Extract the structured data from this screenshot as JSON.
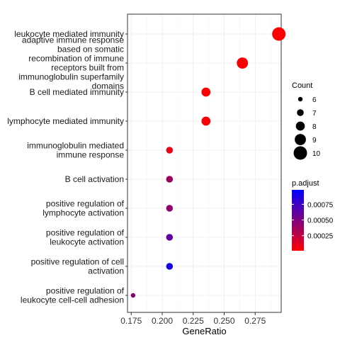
{
  "chart_data": {
    "type": "scatter",
    "xlabel": "GeneRatio",
    "ylabel": "",
    "xlim": [
      0.172,
      0.296
    ],
    "xticks": [
      0.175,
      0.2,
      0.225,
      0.25,
      0.275
    ],
    "xtick_labels": [
      "0.175",
      "0.200",
      "0.225",
      "0.250",
      "0.275"
    ],
    "grid": true,
    "legend_position": "right",
    "categories": [
      "leukocyte mediated immunity",
      "adaptive immune response based on somatic recombination of immune receptors built from immunoglobulin superfamily domains",
      "B cell mediated immunity",
      "lymphocyte mediated immunity",
      "immunoglobulin mediated immune response",
      "B cell activation",
      "positive regulation of lymphocyte activation",
      "positive regulation of leukocyte activation",
      "positive regulation of cell activation",
      "positive regulation of leukocyte cell-cell adhesion"
    ],
    "category_lines": [
      [
        "leukocyte mediated immunity"
      ],
      [
        "adaptive immune response",
        "based on somatic",
        "recombination of immune",
        "receptors built from",
        "immunoglobulin superfamily",
        "domains"
      ],
      [
        "B cell mediated immunity"
      ],
      [
        "lymphocyte mediated immunity"
      ],
      [
        "immunoglobulin mediated",
        "immune response"
      ],
      [
        "B cell activation"
      ],
      [
        "positive regulation of",
        "lymphocyte activation"
      ],
      [
        "positive regulation of",
        "leukocyte activation"
      ],
      [
        "positive regulation of cell",
        "activation"
      ],
      [
        "positive regulation of",
        "leukocyte cell-cell adhesion"
      ]
    ],
    "points": [
      {
        "x": 0.2941,
        "count": 10,
        "p_adjust": 2e-05
      },
      {
        "x": 0.2647,
        "count": 9,
        "p_adjust": 3e-05
      },
      {
        "x": 0.2353,
        "count": 8,
        "p_adjust": 2e-05
      },
      {
        "x": 0.2353,
        "count": 8,
        "p_adjust": 3e-05
      },
      {
        "x": 0.2059,
        "count": 7,
        "p_adjust": 8e-05
      },
      {
        "x": 0.2059,
        "count": 7,
        "p_adjust": 0.00038
      },
      {
        "x": 0.2059,
        "count": 7,
        "p_adjust": 0.00042
      },
      {
        "x": 0.2059,
        "count": 7,
        "p_adjust": 0.00062
      },
      {
        "x": 0.2059,
        "count": 7,
        "p_adjust": 0.00091
      },
      {
        "x": 0.1765,
        "count": 6,
        "p_adjust": 0.00046
      }
    ],
    "size_legend": {
      "title": "Count",
      "values": [
        6,
        7,
        8,
        9,
        10
      ],
      "labels": [
        "6",
        "7",
        "8",
        "9",
        "10"
      ]
    },
    "color_legend": {
      "title": "p.adjust",
      "range": [
        1e-05,
        0.00098
      ],
      "ticks": [
        0.00025,
        0.0005,
        0.00075
      ],
      "tick_labels": [
        "0.00025",
        "0.00050",
        "0.00075"
      ],
      "low_color": "#ff0000",
      "high_color": "#0000ff"
    }
  }
}
